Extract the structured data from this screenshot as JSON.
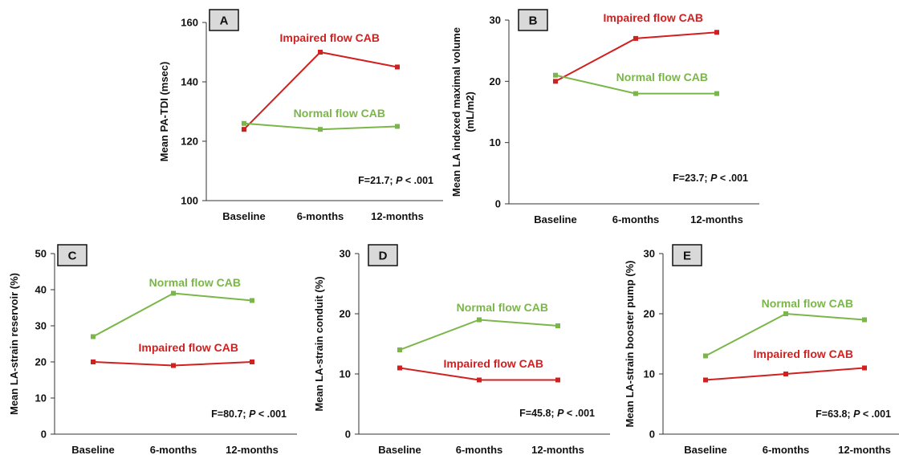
{
  "colors": {
    "impaired": "#d02020",
    "normal": "#7ab648",
    "axis": "#333333",
    "box_fill": "#d9d9d9"
  },
  "chart_data": [
    {
      "panel": "A",
      "type": "line",
      "categories": [
        "Baseline",
        "6-months",
        "12-months"
      ],
      "ylabel": "Mean PA-TDI (msec)",
      "ylim": [
        100,
        160
      ],
      "yticks": [
        100,
        120,
        140,
        160
      ],
      "series": [
        {
          "name": "Impaired flow CAB",
          "color": "#d02020",
          "values": [
            124,
            150,
            145
          ]
        },
        {
          "name": "Normal flow CAB",
          "color": "#7ab648",
          "values": [
            126,
            124,
            125
          ]
        }
      ],
      "stat": {
        "prefix": "F=21.7;",
        "p": "P",
        "suffix": "< .001"
      }
    },
    {
      "panel": "B",
      "type": "line",
      "categories": [
        "Baseline",
        "6-months",
        "12-months"
      ],
      "ylabel": [
        "Mean LA indexed maximal volume",
        "(mL/m2)"
      ],
      "ylim": [
        0,
        30
      ],
      "yticks": [
        0,
        10,
        20,
        30
      ],
      "series": [
        {
          "name": "Impaired flow CAB",
          "color": "#d02020",
          "values": [
            20,
            27,
            28
          ]
        },
        {
          "name": "Normal flow CAB",
          "color": "#7ab648",
          "values": [
            21,
            18,
            18
          ]
        }
      ],
      "stat": {
        "prefix": "F=23.7;",
        "p": "P",
        "suffix": "< .001"
      }
    },
    {
      "panel": "C",
      "type": "line",
      "categories": [
        "Baseline",
        "6-months",
        "12-months"
      ],
      "ylabel": "Mean LA-strain reservoir (%)",
      "ylim": [
        0,
        50
      ],
      "yticks": [
        0,
        10,
        20,
        30,
        40,
        50
      ],
      "series": [
        {
          "name": "Normal flow CAB",
          "color": "#7ab648",
          "values": [
            27,
            39,
            37
          ]
        },
        {
          "name": "Impaired flow CAB",
          "color": "#d02020",
          "values": [
            20,
            19,
            20
          ]
        }
      ],
      "stat": {
        "prefix": "F=80.7;",
        "p": "P",
        "suffix": "< .001"
      }
    },
    {
      "panel": "D",
      "type": "line",
      "categories": [
        "Baseline",
        "6-months",
        "12-months"
      ],
      "ylabel": "Mean LA-strain conduit (%)",
      "ylim": [
        0,
        30
      ],
      "yticks": [
        0,
        10,
        20,
        30
      ],
      "series": [
        {
          "name": "Normal flow CAB",
          "color": "#7ab648",
          "values": [
            14,
            19,
            18
          ]
        },
        {
          "name": "Impaired flow CAB",
          "color": "#d02020",
          "values": [
            11,
            9,
            9
          ]
        }
      ],
      "stat": {
        "prefix": "F=45.8;",
        "p": "P",
        "suffix": "< .001"
      }
    },
    {
      "panel": "E",
      "type": "line",
      "categories": [
        "Baseline",
        "6-months",
        "12-months"
      ],
      "ylabel": "Mean LA-strain booster pump (%)",
      "ylim": [
        0,
        30
      ],
      "yticks": [
        0,
        10,
        20,
        30
      ],
      "series": [
        {
          "name": "Normal flow CAB",
          "color": "#7ab648",
          "values": [
            13,
            20,
            19
          ]
        },
        {
          "name": "Impaired flow CAB",
          "color": "#d02020",
          "values": [
            9,
            10,
            11
          ]
        }
      ],
      "stat": {
        "prefix": "F=63.8;",
        "p": "P",
        "suffix": "< .001"
      }
    }
  ]
}
